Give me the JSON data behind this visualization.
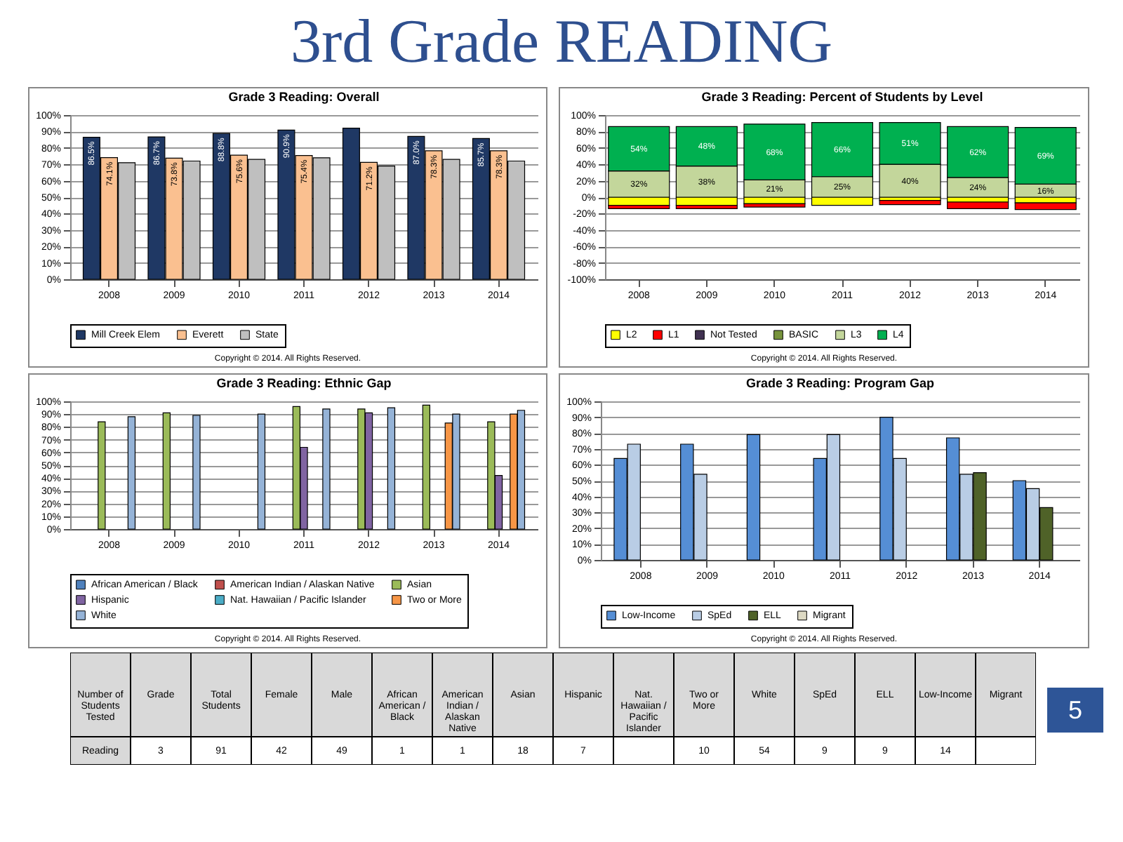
{
  "chart_data": [
    {
      "type": "bar",
      "title": "Grade 3 Reading: Overall",
      "categories": [
        "2008",
        "2009",
        "2010",
        "2011",
        "2012",
        "2013",
        "2014"
      ],
      "series": [
        {
          "name": "Mill Creek Elem",
          "color": "#1f3864",
          "values": [
            86.5,
            86.7,
            88.8,
            90.9,
            92,
            87.0,
            85.7
          ],
          "value_labels": [
            "86.5%",
            "86.7%",
            "88.8%",
            "90.9%",
            null,
            "87.0%",
            "85.7%"
          ]
        },
        {
          "name": "Everett",
          "color": "#fac090",
          "values": [
            74.1,
            73.8,
            75.6,
            75.4,
            71.2,
            78.3,
            78.3
          ],
          "value_labels": [
            "74.1%",
            "73.8%",
            "75.6%",
            "75.4%",
            "71.2%",
            "78.3%",
            "78.3%"
          ]
        },
        {
          "name": "State",
          "color": "#bfbfbf",
          "values": [
            71,
            72,
            73,
            74,
            69,
            73,
            72
          ]
        }
      ],
      "ylim": [
        0,
        100
      ],
      "yticks": [
        {
          "value": 0,
          "label": "0%"
        },
        {
          "value": 10,
          "label": "10%"
        },
        {
          "value": 20,
          "label": "20%"
        },
        {
          "value": 30,
          "label": "30%"
        },
        {
          "value": 40,
          "label": "40%"
        },
        {
          "value": 50,
          "label": "50%"
        },
        {
          "value": 60,
          "label": "60%"
        },
        {
          "value": 70,
          "label": "70%"
        },
        {
          "value": 80,
          "label": "80%"
        },
        {
          "value": 90,
          "label": "90%"
        },
        {
          "value": 100,
          "label": "100%"
        }
      ],
      "grid": "y",
      "legend": "bottom",
      "annotations": [
        "3rd Grade READING",
        "Copyright © 2014. All Rights Reserved."
      ]
    },
    {
      "type": "bar",
      "title": "Grade 3 Reading: Percent of Students by Level",
      "categories": [
        "2008",
        "2009",
        "2010",
        "2011",
        "2012",
        "2013",
        "2014"
      ],
      "stacked": true,
      "series": [
        {
          "name": "L2",
          "color": "#ffff00",
          "values": [
            -10,
            -10,
            -8,
            -10,
            -4,
            -6,
            -7
          ]
        },
        {
          "name": "L1",
          "color": "#ff0000",
          "values": [
            -4,
            -4,
            -4,
            null,
            -5,
            -8,
            -8
          ]
        },
        {
          "name": "Not Tested",
          "color": "#403151",
          "values": [
            null,
            null,
            null,
            null,
            null,
            null,
            null
          ]
        },
        {
          "name": "BASIC",
          "color": "#77933c",
          "values": [
            null,
            null,
            null,
            null,
            null,
            null,
            null
          ]
        },
        {
          "name": "L3",
          "color": "#c3d69b",
          "values": [
            32,
            38,
            21,
            25,
            40,
            24,
            16
          ],
          "value_labels": [
            "32%",
            "38%",
            "21%",
            "25%",
            "40%",
            "24%",
            "16%"
          ]
        },
        {
          "name": "L4",
          "color": "#00b050",
          "values": [
            54,
            48,
            68,
            66,
            51,
            62,
            69
          ],
          "value_labels": [
            "54%",
            "48%",
            "68%",
            "66%",
            "51%",
            "62%",
            "69%"
          ]
        }
      ],
      "ylim": [
        -100,
        100
      ],
      "yticks": [
        {
          "value": -100,
          "label": "-100%"
        },
        {
          "value": -80,
          "label": "-80%"
        },
        {
          "value": -60,
          "label": "-60%"
        },
        {
          "value": -40,
          "label": "-40%"
        },
        {
          "value": -20,
          "label": "-20%"
        },
        {
          "value": 0,
          "label": "0%"
        },
        {
          "value": 20,
          "label": "20%"
        },
        {
          "value": 40,
          "label": "40%"
        },
        {
          "value": 60,
          "label": "60%"
        },
        {
          "value": 80,
          "label": "80%"
        },
        {
          "value": 100,
          "label": "100%"
        }
      ],
      "grid": "y",
      "legend": "bottom",
      "annotations": [
        "Copyright © 2014. All Rights Reserved."
      ]
    },
    {
      "type": "bar",
      "title": "Grade 3 Reading: Ethnic Gap",
      "categories": [
        "2008",
        "2009",
        "2010",
        "2011",
        "2012",
        "2013",
        "2014"
      ],
      "series": [
        {
          "name": "African American / Black",
          "color": "#4f81bd",
          "values": [
            null,
            null,
            null,
            null,
            null,
            null,
            null
          ]
        },
        {
          "name": "American Indian / Alaskan Native",
          "color": "#c0504d",
          "values": [
            null,
            null,
            null,
            null,
            null,
            null,
            null
          ]
        },
        {
          "name": "Asian",
          "color": "#9bbb59",
          "values": [
            84,
            91,
            null,
            96,
            94,
            97,
            84
          ]
        },
        {
          "name": "Hispanic",
          "color": "#8064a2",
          "values": [
            null,
            null,
            null,
            64,
            91,
            null,
            42
          ]
        },
        {
          "name": "Nat. Hawaiian / Pacific Islander",
          "color": "#4bacc6",
          "values": [
            null,
            null,
            null,
            null,
            null,
            null,
            null
          ]
        },
        {
          "name": "Two or More",
          "color": "#f79646",
          "values": [
            null,
            null,
            null,
            null,
            null,
            83,
            90
          ]
        },
        {
          "name": "White",
          "color": "#95b3d7",
          "values": [
            88,
            89,
            90,
            94,
            95,
            90,
            93
          ]
        }
      ],
      "ylim": [
        0,
        100
      ],
      "yticks": [
        {
          "value": 0,
          "label": "0%"
        },
        {
          "value": 10,
          "label": "10%"
        },
        {
          "value": 20,
          "label": "20%"
        },
        {
          "value": 30,
          "label": "30%"
        },
        {
          "value": 40,
          "label": "40%"
        },
        {
          "value": 50,
          "label": "50%"
        },
        {
          "value": 60,
          "label": "60%"
        },
        {
          "value": 70,
          "label": "70%"
        },
        {
          "value": 80,
          "label": "80%"
        },
        {
          "value": 90,
          "label": "90%"
        },
        {
          "value": 100,
          "label": "100%"
        }
      ],
      "grid": "y",
      "legend": "bottom",
      "annotations": [
        "Copyright © 2014. All Rights Reserved."
      ]
    },
    {
      "type": "bar",
      "title": "Grade 3 Reading: Program Gap",
      "categories": [
        "2008",
        "2009",
        "2010",
        "2011",
        "2012",
        "2013",
        "2014"
      ],
      "series": [
        {
          "name": "Low-Income",
          "color": "#558ed5",
          "values": [
            64,
            73,
            79,
            64,
            90,
            77,
            50
          ]
        },
        {
          "name": "SpEd",
          "color": "#b9cde5",
          "values": [
            73,
            54,
            null,
            79,
            64,
            54,
            45
          ]
        },
        {
          "name": "ELL",
          "color": "#4f6228",
          "values": [
            null,
            null,
            null,
            null,
            null,
            55,
            33
          ]
        },
        {
          "name": "Migrant",
          "color": "#ddd9c3",
          "values": [
            null,
            null,
            null,
            null,
            null,
            null,
            null
          ]
        }
      ],
      "ylim": [
        0,
        100
      ],
      "yticks": [
        {
          "value": 0,
          "label": "0%"
        },
        {
          "value": 10,
          "label": "10%"
        },
        {
          "value": 20,
          "label": "20%"
        },
        {
          "value": 30,
          "label": "30%"
        },
        {
          "value": 40,
          "label": "40%"
        },
        {
          "value": 50,
          "label": "50%"
        },
        {
          "value": 60,
          "label": "60%"
        },
        {
          "value": 70,
          "label": "70%"
        },
        {
          "value": 80,
          "label": "80%"
        },
        {
          "value": 90,
          "label": "90%"
        },
        {
          "value": 100,
          "label": "100%"
        }
      ],
      "grid": "y",
      "legend": "bottom",
      "annotations": [
        "Copyright © 2014. All Rights Reserved."
      ]
    },
    {
      "type": "other",
      "ylabel": "Number of Students Tested",
      "categories": [
        "Grade",
        "Total Students",
        "Female",
        "Male",
        "African American / Black",
        "American Indian / Alaskan Native",
        "Asian",
        "Hispanic",
        "Nat. Hawaiian / Pacific Islander",
        "Two or More",
        "White",
        "SpEd",
        "ELL",
        "Low-Income",
        "Migrant"
      ],
      "series": [
        {
          "name": "Reading",
          "values": [
            3,
            91,
            42,
            49,
            1,
            1,
            18,
            7,
            null,
            10,
            54,
            9,
            9,
            14,
            null
          ]
        }
      ],
      "data_labels": true,
      "annotations": [
        "5"
      ]
    }
  ]
}
